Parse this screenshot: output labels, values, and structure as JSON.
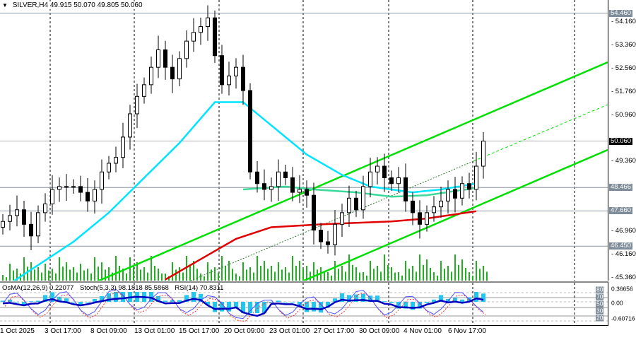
{
  "header": {
    "symbol": "SILVER,H4",
    "ohlc": "49.915 50.070 49.805 50.060"
  },
  "colors": {
    "bull": "#000000",
    "fast_ma": "#00e5ff",
    "mid_ma": "#3cd89a",
    "slow_ma": "#e00000",
    "channel": "#00e000",
    "volume": "#22b022",
    "level_tag": "#7f8c99",
    "osma": "#1ec8f0",
    "stoch_main": "#5050ff",
    "stoch_signal": "#ff3030",
    "rsi": "#0000c0"
  },
  "price_axis": {
    "ticks": [
      "54.160",
      "53.360",
      "52.560",
      "51.760",
      "50.960",
      "49.360",
      "46.960",
      "46.160",
      "45.360"
    ],
    "levels": [
      {
        "value": "54.460",
        "type": "level"
      },
      {
        "value": "48.466",
        "type": "level"
      },
      {
        "value": "47.660",
        "type": "level"
      },
      {
        "value": "46.450",
        "type": "level"
      },
      {
        "value": "50.060",
        "type": "current"
      }
    ]
  },
  "time_axis": [
    "1 Oct 2025",
    "3 Oct 17:00",
    "8 Oct 09:00",
    "13 Oct 01:00",
    "15 Oct 17:00",
    "20 Oct 09:00",
    "23 Oct 01:00",
    "27 Oct 17:00",
    "30 Oct 09:00",
    "4 Nov 01:00",
    "6 Nov 17:00"
  ],
  "closes": [
    47.3,
    47.5,
    47.7,
    47.2,
    46.8,
    47.6,
    47.9,
    48.4,
    48.5,
    48.5,
    48.5,
    48.3,
    48.0,
    48.4,
    49.0,
    49.3,
    49.5,
    50.2,
    51.0,
    51.6,
    52.0,
    52.6,
    53.2,
    52.6,
    52.2,
    52.9,
    53.5,
    53.8,
    54.0,
    54.3,
    53.0,
    52.0,
    52.3,
    52.6,
    51.8,
    49.0,
    48.6,
    48.4,
    48.5,
    49.0,
    48.8,
    48.3,
    48.4,
    48.2,
    47.0,
    46.6,
    46.5,
    47.2,
    47.6,
    48.1,
    47.7,
    48.5,
    49.0,
    49.2,
    48.8,
    48.6,
    48.8,
    48.0,
    47.6,
    47.2,
    47.6,
    47.8,
    48.0,
    48.4,
    48.1,
    48.6,
    48.4,
    49.2,
    50.06
  ],
  "moving_averages": {
    "fast": [
      [
        0,
        45.0
      ],
      [
        5,
        45.8
      ],
      [
        10,
        46.6
      ],
      [
        15,
        47.6
      ],
      [
        20,
        48.8
      ],
      [
        25,
        50.0
      ],
      [
        30,
        51.4
      ],
      [
        34,
        51.4
      ],
      [
        38,
        50.6
      ],
      [
        43,
        49.6
      ],
      [
        48,
        48.9
      ],
      [
        52,
        48.5
      ],
      [
        58,
        48.3
      ],
      [
        62,
        48.4
      ],
      [
        67,
        48.6
      ]
    ],
    "mid": [
      [
        34,
        48.4
      ],
      [
        40,
        48.5
      ],
      [
        44,
        48.4
      ],
      [
        50,
        48.3
      ],
      [
        55,
        48.15
      ],
      [
        60,
        48.2
      ],
      [
        67,
        48.45
      ]
    ],
    "slow": [
      [
        23,
        45.3
      ],
      [
        28,
        46.0
      ],
      [
        33,
        46.7
      ],
      [
        38,
        47.1
      ],
      [
        45,
        47.2
      ],
      [
        50,
        47.25
      ],
      [
        55,
        47.3
      ],
      [
        60,
        47.4
      ],
      [
        67,
        47.65
      ]
    ]
  },
  "indicators": {
    "osma": "OsMA(12,26,9) 0.22077",
    "stoch": "Stoch(5,3,3) 98.1818 85.5868",
    "rsi": "RSI(14) 70.8311",
    "axis": [
      "0.36656",
      "80",
      "70",
      "0.00",
      "50",
      "30",
      "20",
      "-0.60716"
    ]
  }
}
